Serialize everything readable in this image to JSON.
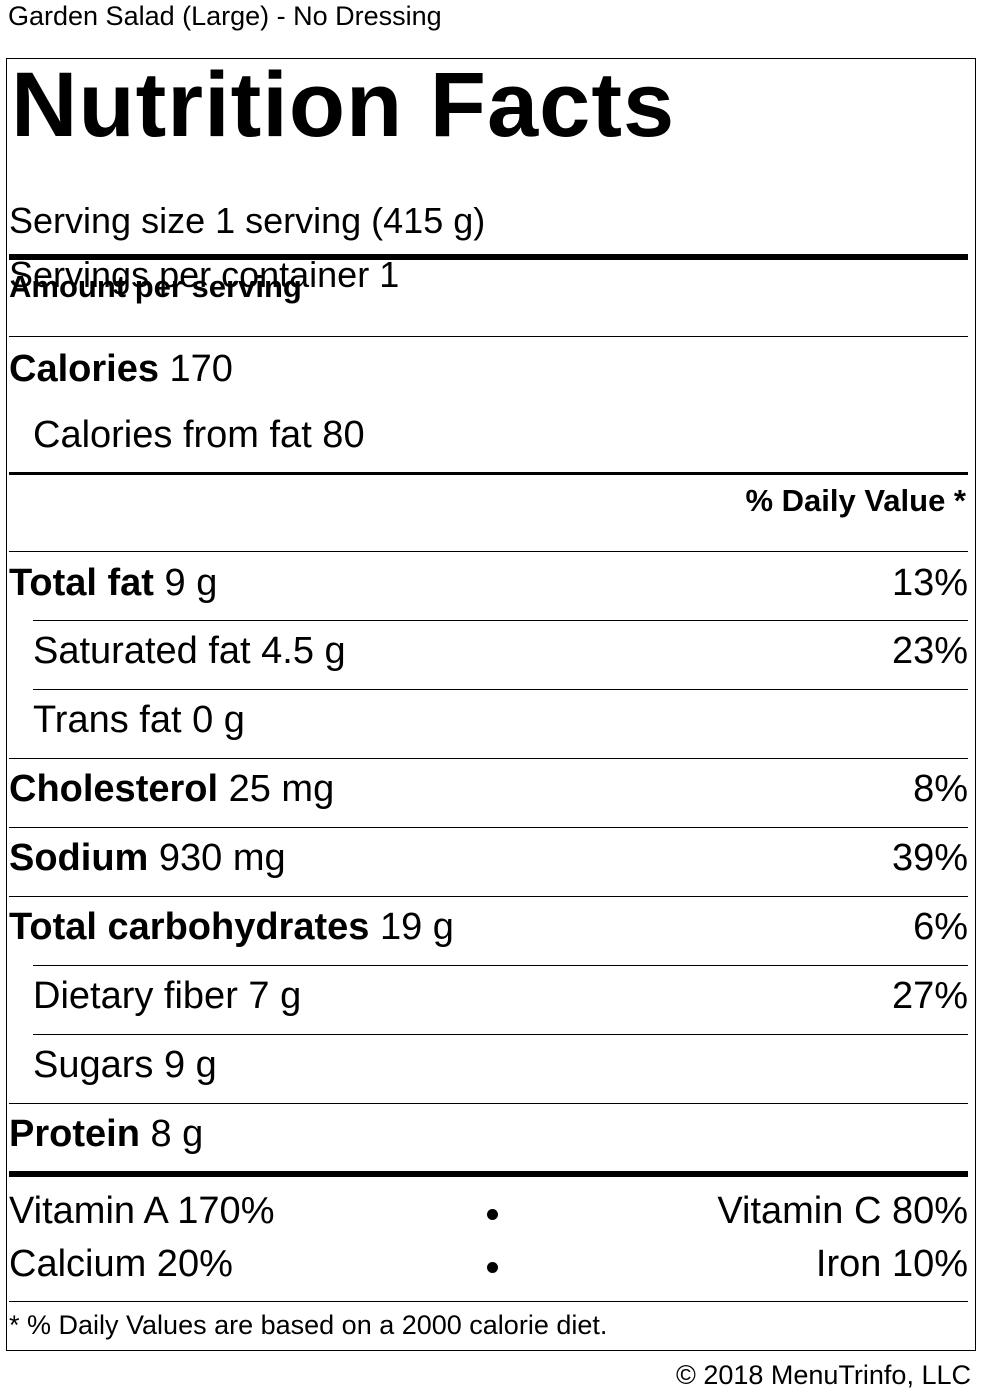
{
  "item_name": "Garden Salad (Large) - No Dressing",
  "title": "Nutrition Facts",
  "serving_size": "Serving size 1 serving (415 g)",
  "servings_per_container": "Servings per container 1",
  "amount_per_serving": "Amount per serving",
  "calories": {
    "label": "Calories",
    "value": "170"
  },
  "calories_from_fat": "Calories from fat 80",
  "daily_value_header": "% Daily Value *",
  "nutrients": [
    {
      "label": "Total fat",
      "amount": "9 g",
      "dv": "13%"
    },
    {
      "label": "Saturated fat 4.5 g",
      "amount": "",
      "dv": "23%"
    },
    {
      "label": "Trans fat 0 g",
      "amount": "",
      "dv": ""
    },
    {
      "label": "Cholesterol",
      "amount": "25 mg",
      "dv": "8%"
    },
    {
      "label": "Sodium",
      "amount": "930 mg",
      "dv": "39%"
    },
    {
      "label": "Total carbohydrates",
      "amount": "19 g",
      "dv": "6%"
    },
    {
      "label": "Dietary fiber 7 g",
      "amount": "",
      "dv": "27%"
    },
    {
      "label": "Sugars 9 g",
      "amount": "",
      "dv": ""
    },
    {
      "label": "Protein",
      "amount": "8 g",
      "dv": ""
    }
  ],
  "vitamins": [
    {
      "left": "Vitamin A 170%",
      "right": "Vitamin C 80%"
    },
    {
      "left": "Calcium 20%",
      "right": "Iron 10%"
    }
  ],
  "footnote": "* % Daily Values are based on a 2000 calorie diet.",
  "copyright": "© 2018 MenuTrinfo, LLC"
}
